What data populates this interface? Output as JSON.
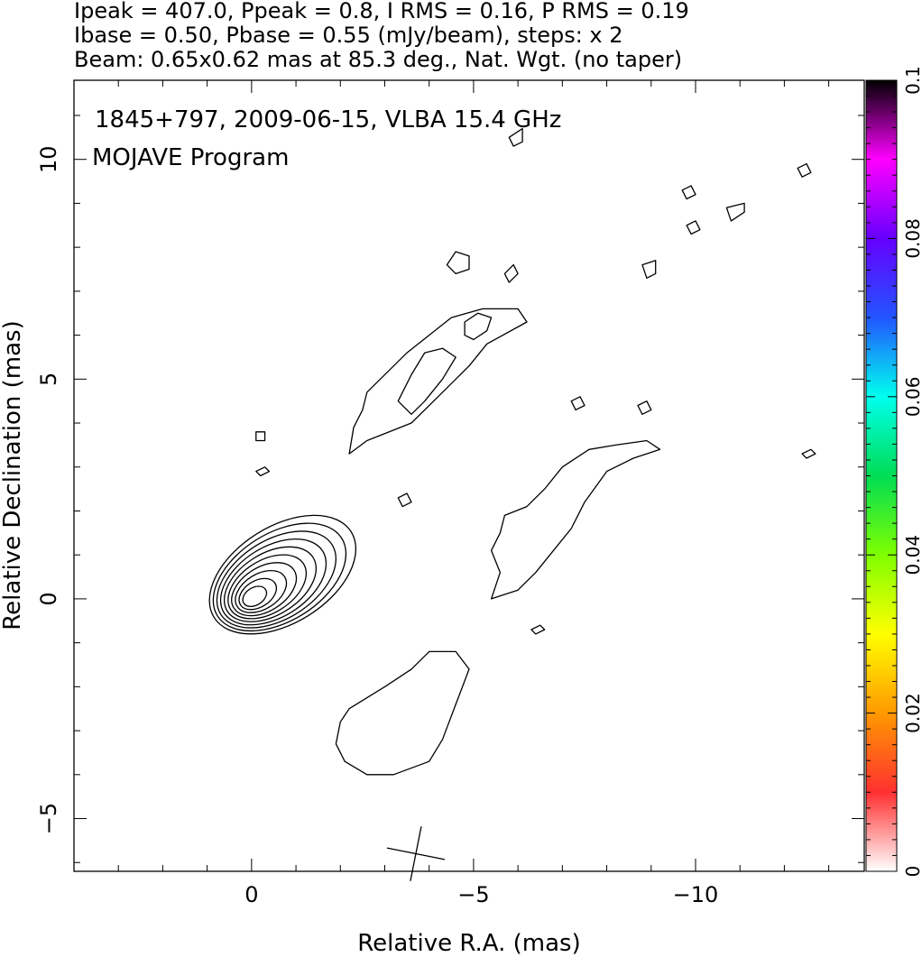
{
  "header": {
    "line1": "Ipeak = 407.0, Ppeak = 0.8, I RMS = 0.16, P RMS = 0.19",
    "line2": "Ibase = 0.50, Pbase = 0.55 (mJy/beam), steps: x 2",
    "line3": "Beam: 0.65x0.62 mas at 85.3 deg., Nat. Wgt. (no taper)"
  },
  "chart_data": {
    "type": "contour",
    "title_line1": "1845+797, 2009-06-15, VLBA 15.4 GHz",
    "title_line2": "MOJAVE Program",
    "xlabel": "Relative R.A. (mas)",
    "ylabel": "Relative Declination (mas)",
    "xlim": [
      4.0,
      -13.8
    ],
    "ylim": [
      -6.2,
      11.8
    ],
    "xticks": [
      {
        "value": 0,
        "label": "0"
      },
      {
        "value": -5,
        "label": "−5"
      },
      {
        "value": -10,
        "label": "−10"
      }
    ],
    "yticks": [
      {
        "value": -5,
        "label": "−5"
      },
      {
        "value": 0,
        "label": "0"
      },
      {
        "value": 5,
        "label": "5"
      },
      {
        "value": 10,
        "label": "10"
      }
    ],
    "core": {
      "x": 0.0,
      "y": 0.0,
      "levels_mJy_per_beam": [
        0.5,
        1,
        2,
        4,
        8,
        16,
        32,
        64,
        128,
        256
      ]
    },
    "contours": [
      {
        "name": "jet-upper",
        "points": [
          [
            -2.2,
            3.3
          ],
          [
            -2.6,
            3.6
          ],
          [
            -3.6,
            4.0
          ],
          [
            -4.2,
            4.6
          ],
          [
            -4.9,
            5.3
          ],
          [
            -5.3,
            5.8
          ],
          [
            -6.2,
            6.3
          ],
          [
            -6.0,
            6.6
          ],
          [
            -5.2,
            6.6
          ],
          [
            -4.5,
            6.4
          ],
          [
            -4.0,
            6.0
          ],
          [
            -3.5,
            5.6
          ],
          [
            -3.0,
            5.1
          ],
          [
            -2.6,
            4.7
          ],
          [
            -2.5,
            4.3
          ],
          [
            -2.3,
            3.9
          ],
          [
            -2.2,
            3.3
          ]
        ]
      },
      {
        "name": "jet-upper-inner-a",
        "points": [
          [
            -3.3,
            4.5
          ],
          [
            -3.6,
            4.2
          ],
          [
            -3.9,
            4.5
          ],
          [
            -4.3,
            5.0
          ],
          [
            -4.6,
            5.5
          ],
          [
            -4.3,
            5.7
          ],
          [
            -3.9,
            5.6
          ],
          [
            -3.6,
            5.1
          ],
          [
            -3.3,
            4.5
          ]
        ]
      },
      {
        "name": "jet-upper-inner-b",
        "points": [
          [
            -4.8,
            6.0
          ],
          [
            -5.0,
            5.9
          ],
          [
            -5.3,
            6.1
          ],
          [
            -5.4,
            6.4
          ],
          [
            -5.1,
            6.5
          ],
          [
            -4.8,
            6.3
          ],
          [
            -4.8,
            6.0
          ]
        ]
      },
      {
        "name": "jet-middle",
        "points": [
          [
            -5.4,
            0.0
          ],
          [
            -5.6,
            0.6
          ],
          [
            -5.4,
            1.1
          ],
          [
            -5.6,
            1.5
          ],
          [
            -5.7,
            1.9
          ],
          [
            -6.2,
            2.1
          ],
          [
            -6.6,
            2.5
          ],
          [
            -7.0,
            3.0
          ],
          [
            -7.6,
            3.4
          ],
          [
            -8.2,
            3.5
          ],
          [
            -8.9,
            3.6
          ],
          [
            -9.2,
            3.4
          ],
          [
            -8.6,
            3.2
          ],
          [
            -8.0,
            2.9
          ],
          [
            -7.5,
            2.2
          ],
          [
            -7.2,
            1.6
          ],
          [
            -6.8,
            1.1
          ],
          [
            -6.4,
            0.6
          ],
          [
            -6.0,
            0.2
          ],
          [
            -5.4,
            0.0
          ]
        ]
      },
      {
        "name": "south-blob",
        "points": [
          [
            -2.0,
            -2.8
          ],
          [
            -2.2,
            -2.5
          ],
          [
            -3.0,
            -2.0
          ],
          [
            -3.6,
            -1.6
          ],
          [
            -4.0,
            -1.2
          ],
          [
            -4.6,
            -1.2
          ],
          [
            -4.9,
            -1.6
          ],
          [
            -4.6,
            -2.4
          ],
          [
            -4.3,
            -3.2
          ],
          [
            -4.0,
            -3.7
          ],
          [
            -3.2,
            -4.0
          ],
          [
            -2.6,
            -4.0
          ],
          [
            -2.1,
            -3.7
          ],
          [
            -1.9,
            -3.3
          ],
          [
            -2.0,
            -2.8
          ]
        ]
      },
      {
        "name": "blob-1",
        "points": [
          [
            -4.4,
            7.6
          ],
          [
            -4.6,
            7.4
          ],
          [
            -4.9,
            7.5
          ],
          [
            -4.9,
            7.8
          ],
          [
            -4.6,
            7.9
          ],
          [
            -4.4,
            7.6
          ]
        ]
      },
      {
        "name": "blob-2",
        "points": [
          [
            -5.7,
            7.4
          ],
          [
            -5.8,
            7.2
          ],
          [
            -6.0,
            7.4
          ],
          [
            -5.9,
            7.6
          ],
          [
            -5.7,
            7.4
          ]
        ]
      },
      {
        "name": "blob-3",
        "points": [
          [
            -5.8,
            10.5
          ],
          [
            -5.9,
            10.3
          ],
          [
            -6.1,
            10.4
          ],
          [
            -6.1,
            10.7
          ],
          [
            -5.8,
            10.5
          ]
        ]
      },
      {
        "name": "blob-4",
        "points": [
          [
            -8.8,
            7.6
          ],
          [
            -8.9,
            7.3
          ],
          [
            -9.1,
            7.4
          ],
          [
            -9.1,
            7.7
          ],
          [
            -8.8,
            7.6
          ]
        ]
      },
      {
        "name": "blob-5",
        "points": [
          [
            -10.7,
            8.9
          ],
          [
            -10.8,
            8.6
          ],
          [
            -11.1,
            8.8
          ],
          [
            -11.1,
            9.0
          ],
          [
            -10.7,
            8.9
          ]
        ]
      },
      {
        "name": "blob-6",
        "points": [
          [
            -9.7,
            9.3
          ],
          [
            -9.8,
            9.1
          ],
          [
            -10.0,
            9.2
          ],
          [
            -9.9,
            9.4
          ],
          [
            -9.7,
            9.3
          ]
        ]
      },
      {
        "name": "blob-7",
        "points": [
          [
            -9.8,
            8.5
          ],
          [
            -9.9,
            8.3
          ],
          [
            -10.1,
            8.4
          ],
          [
            -10.0,
            8.6
          ],
          [
            -9.8,
            8.5
          ]
        ]
      },
      {
        "name": "blob-8",
        "points": [
          [
            -12.3,
            9.8
          ],
          [
            -12.4,
            9.6
          ],
          [
            -12.6,
            9.7
          ],
          [
            -12.5,
            9.9
          ],
          [
            -12.3,
            9.8
          ]
        ]
      },
      {
        "name": "blob-9",
        "points": [
          [
            -7.2,
            4.5
          ],
          [
            -7.3,
            4.3
          ],
          [
            -7.5,
            4.4
          ],
          [
            -7.4,
            4.6
          ],
          [
            -7.2,
            4.5
          ]
        ]
      },
      {
        "name": "blob-10",
        "points": [
          [
            -8.7,
            4.4
          ],
          [
            -8.8,
            4.2
          ],
          [
            -9.0,
            4.3
          ],
          [
            -8.9,
            4.5
          ],
          [
            -8.7,
            4.4
          ]
        ]
      },
      {
        "name": "blob-11",
        "points": [
          [
            -0.1,
            3.8
          ],
          [
            -0.1,
            3.6
          ],
          [
            -0.3,
            3.6
          ],
          [
            -0.3,
            3.8
          ],
          [
            -0.1,
            3.8
          ]
        ]
      },
      {
        "name": "blob-12",
        "points": [
          [
            -0.1,
            2.9
          ],
          [
            -0.2,
            2.8
          ],
          [
            -0.4,
            2.9
          ],
          [
            -0.3,
            3.0
          ],
          [
            -0.1,
            2.9
          ]
        ]
      },
      {
        "name": "blob-13",
        "points": [
          [
            -3.3,
            2.3
          ],
          [
            -3.4,
            2.1
          ],
          [
            -3.6,
            2.2
          ],
          [
            -3.5,
            2.4
          ],
          [
            -3.3,
            2.3
          ]
        ]
      },
      {
        "name": "blob-14",
        "points": [
          [
            -6.3,
            -0.7
          ],
          [
            -6.4,
            -0.8
          ],
          [
            -6.6,
            -0.7
          ],
          [
            -6.5,
            -0.6
          ],
          [
            -6.3,
            -0.7
          ]
        ]
      },
      {
        "name": "blob-15",
        "points": [
          [
            -12.4,
            3.3
          ],
          [
            -12.5,
            3.2
          ],
          [
            -12.7,
            3.3
          ],
          [
            -12.6,
            3.4
          ],
          [
            -12.4,
            3.3
          ]
        ]
      }
    ],
    "beam": {
      "x": -3.7,
      "y": -5.8,
      "bmaj_mas": 0.65,
      "bmin_mas": 0.62,
      "pa_deg": 85.3
    },
    "colorbar": {
      "min": 0,
      "max": 0.1,
      "ticks": [
        {
          "value": 0,
          "label": "0"
        },
        {
          "value": 0.02,
          "label": "0.02"
        },
        {
          "value": 0.04,
          "label": "0.04"
        },
        {
          "value": 0.06,
          "label": "0.06"
        },
        {
          "value": 0.08,
          "label": "0.08"
        },
        {
          "value": 0.1,
          "label": "0.1"
        }
      ],
      "colors": [
        "#ffffff",
        "#ff3030",
        "#ff9900",
        "#ffff00",
        "#7fff00",
        "#00dd55",
        "#00ffee",
        "#2255ff",
        "#6600ff",
        "#ff00ff",
        "#000000"
      ]
    }
  }
}
